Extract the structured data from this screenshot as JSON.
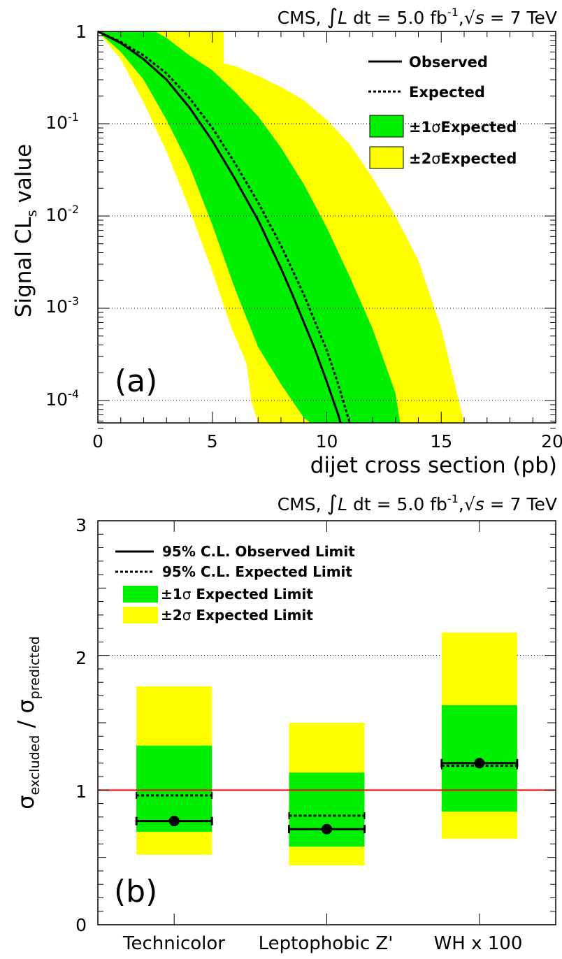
{
  "header_a": {
    "pre": "CMS, ",
    "integral": "∫",
    "L": "L",
    "dt": " dt = 5.0 fb",
    "exp": "-1",
    "comma": ",",
    "sqrt": "√",
    "s": "s",
    "post": " = 7 TeV"
  },
  "header_b": {
    "pre": "CMS, ",
    "integral": "∫",
    "L": "L",
    "dt": " dt = 5.0 fb",
    "exp": "-1",
    "comma": ",",
    "sqrt": "√",
    "s": "s",
    "post": " = 7 TeV"
  },
  "panel_a": {
    "label": "(a)",
    "ylabel": {
      "pre": "Signal CL",
      "sub": "s",
      "post": " value"
    },
    "xlabel": "dijet cross section (pb)",
    "xtick_labels": [
      "0",
      "5",
      "10",
      "15",
      "20"
    ],
    "ytick_labels": [
      {
        "base": "1",
        "exp": ""
      },
      {
        "base": "10",
        "exp": "-1"
      },
      {
        "base": "10",
        "exp": "-2"
      },
      {
        "base": "10",
        "exp": "-3"
      },
      {
        "base": "10",
        "exp": "-4"
      }
    ],
    "legend": {
      "observed": "Observed",
      "expected": "Expected",
      "one_sigma": {
        "pm": "±1",
        "sigma": "σ",
        "text": "Expected"
      },
      "two_sigma": {
        "pm": "±2",
        "sigma": "σ",
        "text": "Expected"
      }
    }
  },
  "panel_b": {
    "label": "(b)",
    "ylabel": {
      "sigma1": "σ",
      "sub1": "excluded",
      "slash": " / ",
      "sigma2": "σ",
      "sub2": "predicted"
    },
    "ytick_labels": [
      "0",
      "1",
      "2",
      "3"
    ],
    "legend": {
      "observed": "95% C.L. Observed Limit",
      "expected": "95% C.L. Expected Limit",
      "one_sigma": {
        "pm": "±1",
        "sigma": "σ",
        "text": " Expected Limit"
      },
      "two_sigma": {
        "pm": "±2",
        "sigma": "σ",
        "text": " Expected Limit"
      }
    }
  },
  "colors": {
    "one_sigma": "#00ee00",
    "two_sigma": "#ffff00",
    "reference_line": "#ff0000",
    "line": "#000000"
  },
  "chart_data": [
    {
      "type": "line",
      "xlabel": "dijet cross section (pb)",
      "ylabel": "Signal CLs value",
      "xlim": [
        0,
        20
      ],
      "ylim": [
        5e-05,
        1
      ],
      "yscale": "log",
      "grid": "horizontal dotted at decades",
      "legend_position": "top-right",
      "series": [
        {
          "name": "Observed",
          "style": "solid",
          "x": [
            0,
            1,
            2,
            3,
            4,
            5,
            6,
            7,
            8,
            8.5,
            9,
            9.5,
            10,
            10.5,
            10.6
          ],
          "y": [
            1,
            0.75,
            0.5,
            0.3,
            0.15,
            0.065,
            0.025,
            0.009,
            0.0027,
            0.0014,
            0.0007,
            0.00035,
            0.00016,
            7e-05,
            5e-05
          ]
        },
        {
          "name": "Expected",
          "style": "dotted",
          "x": [
            0,
            1,
            2,
            3,
            4,
            5,
            6,
            7,
            8,
            9,
            10,
            10.5,
            11
          ],
          "y": [
            1,
            0.77,
            0.55,
            0.35,
            0.19,
            0.09,
            0.037,
            0.014,
            0.0048,
            0.0014,
            0.00035,
            0.00015,
            5e-05
          ]
        },
        {
          "name": "±1σ Expected",
          "style": "band",
          "lower": {
            "x": [
              0,
              1,
              2,
              3,
              4,
              5,
              6,
              7,
              8,
              9,
              9.3
            ],
            "y": [
              1,
              0.6,
              0.3,
              0.11,
              0.035,
              0.008,
              0.0016,
              0.00038,
              0.00015,
              6.5e-05,
              5e-05
            ]
          },
          "upper": {
            "x": [
              0,
              2.5,
              3,
              4,
              5,
              6,
              7,
              8,
              9,
              10,
              11,
              12,
              13,
              13.2
            ],
            "y": [
              1,
              1,
              0.85,
              0.55,
              0.38,
              0.22,
              0.12,
              0.055,
              0.022,
              0.0075,
              0.0022,
              0.0006,
              0.00012,
              5e-05
            ]
          }
        },
        {
          "name": "±2σ Expected",
          "style": "band",
          "lower": {
            "x": [
              0,
              1,
              2,
              3,
              4,
              5,
              5.8,
              6.5,
              6.7,
              7.0
            ],
            "y": [
              1,
              0.5,
              0.17,
              0.05,
              0.012,
              0.0025,
              0.00065,
              0.00025,
              0.0001,
              5e-05
            ]
          },
          "upper": {
            "x": [
              0,
              2.6,
              5.5,
              5.5,
              6,
              7,
              8,
              9,
              10,
              11,
              12,
              13,
              14,
              15,
              16
            ],
            "y": [
              1,
              1,
              1,
              0.45,
              0.42,
              0.33,
              0.25,
              0.18,
              0.11,
              0.06,
              0.026,
              0.01,
              0.0033,
              0.0006,
              5e-05
            ]
          }
        }
      ]
    },
    {
      "type": "bar",
      "categories": [
        "Technicolor",
        "Leptophobic Z'",
        "WH x 100"
      ],
      "ylabel": "σexcluded / σpredicted",
      "ylim": [
        0,
        3
      ],
      "grid": "horizontal dotted at 2",
      "reference_line": 1,
      "legend_position": "top-left",
      "series": [
        {
          "name": "95% C.L. Observed Limit",
          "values": [
            0.77,
            0.71,
            1.2
          ]
        },
        {
          "name": "95% C.L. Expected Limit",
          "values": [
            0.96,
            0.81,
            1.18
          ]
        },
        {
          "name": "±1σ Expected Limit",
          "low": [
            0.69,
            0.58,
            0.84
          ],
          "high": [
            1.33,
            1.13,
            1.63
          ]
        },
        {
          "name": "±2σ Expected Limit",
          "low": [
            0.52,
            0.44,
            0.64
          ],
          "high": [
            1.77,
            1.5,
            2.17
          ]
        }
      ]
    }
  ]
}
